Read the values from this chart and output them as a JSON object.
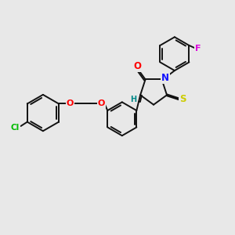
{
  "bg_color": "#e8e8e8",
  "bond_color": "#111111",
  "bond_width": 1.4,
  "dbo": 0.06,
  "atom_colors": {
    "O": "#ff0000",
    "N": "#1111ff",
    "S": "#cccc00",
    "Cl": "#00bb00",
    "F": "#dd00dd",
    "H": "#008888",
    "C": "#111111"
  },
  "fs": 7.0,
  "figsize": [
    3.0,
    3.0
  ],
  "dpi": 100
}
